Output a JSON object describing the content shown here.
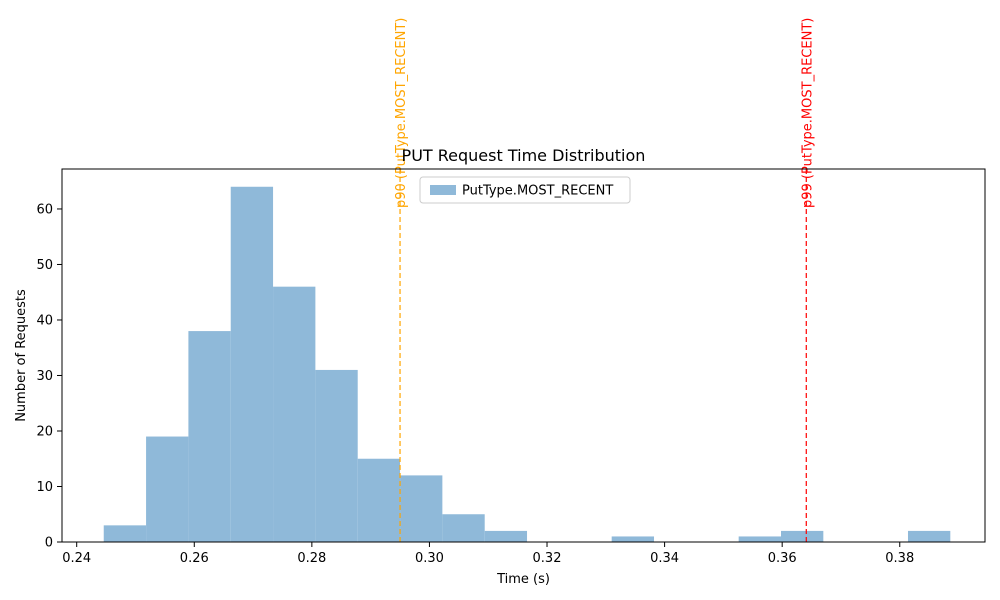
{
  "chart_data": {
    "type": "bar",
    "title": "PUT Request Time Distribution",
    "xlabel": "Time (s)",
    "ylabel": "Number of Requests",
    "xlim": [
      0.2375,
      0.3945
    ],
    "ylim": [
      0,
      67.2
    ],
    "x_ticks": [
      0.24,
      0.26,
      0.28,
      0.3,
      0.32,
      0.34,
      0.36,
      0.38
    ],
    "x_tick_labels": [
      "0.24",
      "0.26",
      "0.28",
      "0.30",
      "0.32",
      "0.34",
      "0.36",
      "0.38"
    ],
    "y_ticks": [
      0,
      10,
      20,
      30,
      40,
      50,
      60
    ],
    "y_tick_labels": [
      "0",
      "10",
      "20",
      "30",
      "40",
      "50",
      "60"
    ],
    "grid": false,
    "legend_position": "top-center",
    "series": [
      {
        "name": "PutType.MOST_RECENT",
        "color": "#8fb9d9",
        "bins": [
          {
            "x0": 0.2446,
            "x1": 0.2518,
            "count": 3
          },
          {
            "x0": 0.2518,
            "x1": 0.259,
            "count": 19
          },
          {
            "x0": 0.259,
            "x1": 0.2662,
            "count": 38
          },
          {
            "x0": 0.2662,
            "x1": 0.2734,
            "count": 64
          },
          {
            "x0": 0.2734,
            "x1": 0.2806,
            "count": 46
          },
          {
            "x0": 0.2806,
            "x1": 0.2878,
            "count": 31
          },
          {
            "x0": 0.2878,
            "x1": 0.295,
            "count": 15
          },
          {
            "x0": 0.295,
            "x1": 0.3022,
            "count": 12
          },
          {
            "x0": 0.3022,
            "x1": 0.3094,
            "count": 5
          },
          {
            "x0": 0.3094,
            "x1": 0.3166,
            "count": 2
          },
          {
            "x0": 0.3166,
            "x1": 0.3238,
            "count": 0
          },
          {
            "x0": 0.3238,
            "x1": 0.331,
            "count": 0
          },
          {
            "x0": 0.331,
            "x1": 0.3382,
            "count": 1
          },
          {
            "x0": 0.3382,
            "x1": 0.3454,
            "count": 0
          },
          {
            "x0": 0.3454,
            "x1": 0.3526,
            "count": 0
          },
          {
            "x0": 0.3526,
            "x1": 0.3598,
            "count": 1
          },
          {
            "x0": 0.3598,
            "x1": 0.367,
            "count": 2
          },
          {
            "x0": 0.367,
            "x1": 0.3742,
            "count": 0
          },
          {
            "x0": 0.3742,
            "x1": 0.3814,
            "count": 0
          },
          {
            "x0": 0.3814,
            "x1": 0.3886,
            "count": 2
          }
        ]
      }
    ],
    "reference_lines": [
      {
        "label": "p90 (PutType.MOST_RECENT)",
        "x": 0.295,
        "color": "#ffa500",
        "style": "dashed"
      },
      {
        "label": "p99 (PutType.MOST_RECENT)",
        "x": 0.3641,
        "color": "#ff0000",
        "style": "dashed"
      }
    ]
  }
}
